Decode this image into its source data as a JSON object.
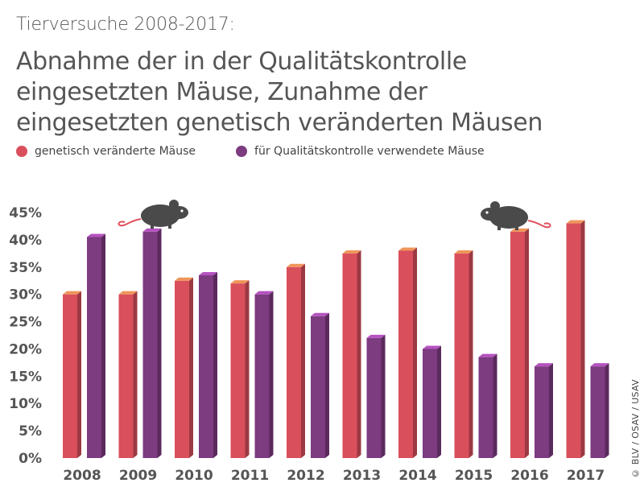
{
  "header": {
    "subtitle": "Tierversuche 2008-2017:",
    "title": "Abnahme der in der Qualitätskontrolle eingesetzten Mäuse, Zunahme der eingesetzten genetisch veränderten Mäusen"
  },
  "copyright": "© BLV / OSAV / USAV",
  "icons": [
    "mouse-icon",
    "mouse-icon"
  ],
  "chart_data": {
    "type": "bar",
    "title": "Abnahme der in der Qualitätskontrolle eingesetzten Mäuse, Zunahme der eingesetzten genetisch veränderten Mäusen",
    "subtitle": "Tierversuche 2008-2017:",
    "xlabel": "",
    "ylabel": "",
    "ylim": [
      0,
      45
    ],
    "yticks": [
      "0%",
      "5%",
      "10%",
      "15%",
      "20%",
      "25%",
      "30%",
      "35%",
      "40%",
      "45%"
    ],
    "categories": [
      "2008",
      "2009",
      "2010",
      "2011",
      "2012",
      "2013",
      "2014",
      "2015",
      "2016",
      "2017"
    ],
    "legend_position": "top-left",
    "grid": false,
    "series": [
      {
        "name": "genetisch veränderte Mäuse",
        "color": "#d94f5c",
        "top_color": "#f0955a",
        "values": [
          30,
          30,
          32.5,
          32,
          35,
          37.5,
          38,
          37.5,
          41.5,
          43
        ]
      },
      {
        "name": "für Qualitätskontrolle verwendete Mäuse",
        "color": "#7d3b80",
        "top_color": "#b552c0",
        "values": [
          40.5,
          41.5,
          33.5,
          30,
          26,
          22,
          20,
          18.5,
          16.8,
          16.8
        ]
      }
    ]
  }
}
